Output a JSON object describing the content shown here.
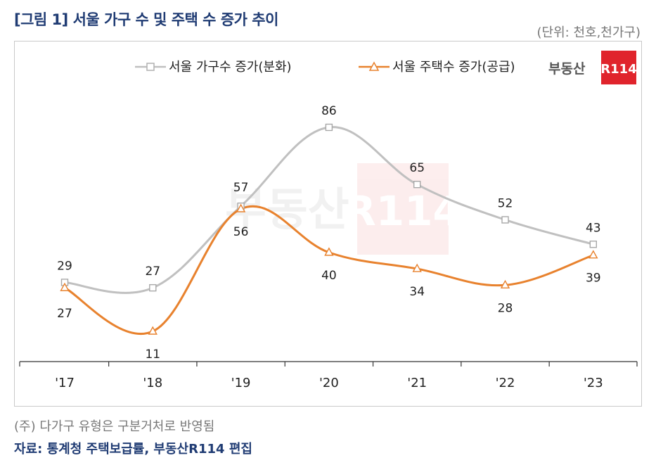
{
  "title": "[그림 1] 서울 가구 수 및 주택 수 증가 추이",
  "unit": "(단위: 천호,천가구)",
  "note": "(주) 다가구 유형은 구분거처로 반영됨",
  "source": "자료: 통계청 주택보급률, 부동산R114 편집",
  "logo": {
    "text": "부동산",
    "badge": "R114",
    "badge_color": "#e0242c",
    "text_color": "#555555"
  },
  "chart_data": {
    "type": "line",
    "categories": [
      "'17",
      "'18",
      "'19",
      "'20",
      "'21",
      "'22",
      "'23"
    ],
    "series": [
      {
        "name": "서울 가구수 증가(분화)",
        "values": [
          29,
          27,
          57,
          86,
          65,
          52,
          43
        ],
        "color": "#c0c0c0",
        "marker": "square"
      },
      {
        "name": "서울 주택수 증가(공급)",
        "values": [
          27,
          11,
          56,
          40,
          34,
          28,
          39
        ],
        "color": "#e8822e",
        "marker": "triangle"
      }
    ],
    "ylim": [
      0,
      100
    ],
    "grid": false,
    "legend": "top"
  }
}
